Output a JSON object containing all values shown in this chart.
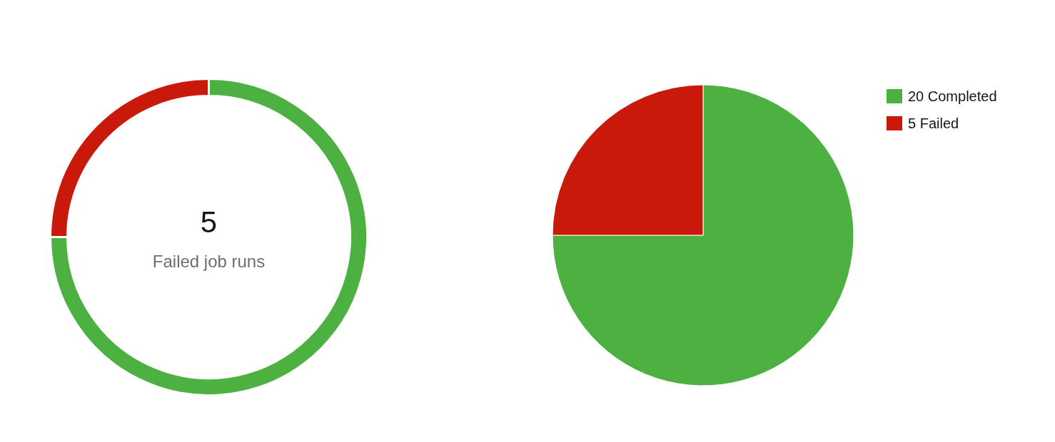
{
  "chart_data": [
    {
      "type": "donut",
      "categories": [
        null,
        null
      ],
      "values": [
        75,
        25
      ],
      "colors": [
        "#4cb140",
        "#c9190b"
      ],
      "annotations": [
        "5",
        "Failed job runs"
      ],
      "legend": false
    },
    {
      "type": "pie",
      "categories": [
        "20 Completed",
        "5 Failed"
      ],
      "values": [
        75,
        25
      ],
      "colors": [
        "#4cb140",
        "#c9190b"
      ],
      "legend": "top right"
    }
  ]
}
